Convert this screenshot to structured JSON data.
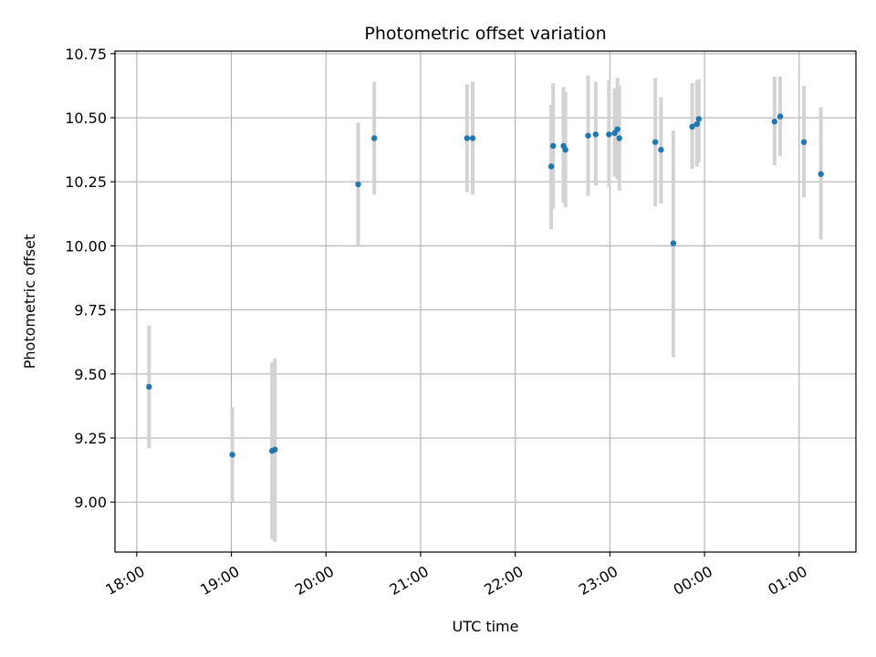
{
  "chart_data": {
    "type": "scatter",
    "title": "Photometric offset variation",
    "xlabel": "UTC time",
    "ylabel": "Photometric offset",
    "x_unit": "hours (UTC, continuing past midnight)",
    "xlim": [
      17.77,
      25.6
    ],
    "ylim": [
      8.805,
      10.76
    ],
    "grid": true,
    "x_ticks": [
      {
        "value": 18,
        "label": "18:00"
      },
      {
        "value": 19,
        "label": "19:00"
      },
      {
        "value": 20,
        "label": "20:00"
      },
      {
        "value": 21,
        "label": "21:00"
      },
      {
        "value": 22,
        "label": "22:00"
      },
      {
        "value": 23,
        "label": "23:00"
      },
      {
        "value": 24,
        "label": "00:00"
      },
      {
        "value": 25,
        "label": "01:00"
      }
    ],
    "y_ticks": [
      {
        "value": 9.0,
        "label": "9.00"
      },
      {
        "value": 9.25,
        "label": "9.25"
      },
      {
        "value": 9.5,
        "label": "9.50"
      },
      {
        "value": 9.75,
        "label": "9.75"
      },
      {
        "value": 10.0,
        "label": "10.00"
      },
      {
        "value": 10.25,
        "label": "10.25"
      },
      {
        "value": 10.5,
        "label": "10.50"
      },
      {
        "value": 10.75,
        "label": "10.75"
      }
    ],
    "colors": {
      "point": "#1f77b4",
      "errorbar": "#d3d3d3",
      "grid": "#b0b0b0"
    },
    "points": [
      {
        "x": 18.13,
        "y": 9.45,
        "ylow": 9.21,
        "yhigh": 9.69
      },
      {
        "x": 19.01,
        "y": 9.185,
        "ylow": 9.0,
        "yhigh": 9.37
      },
      {
        "x": 19.43,
        "y": 9.2,
        "ylow": 8.855,
        "yhigh": 9.545
      },
      {
        "x": 19.46,
        "y": 9.205,
        "ylow": 8.845,
        "yhigh": 9.56
      },
      {
        "x": 20.34,
        "y": 10.24,
        "ylow": 10.0,
        "yhigh": 10.48
      },
      {
        "x": 20.51,
        "y": 10.42,
        "ylow": 10.2,
        "yhigh": 10.64
      },
      {
        "x": 21.49,
        "y": 10.42,
        "ylow": 10.21,
        "yhigh": 10.63
      },
      {
        "x": 21.55,
        "y": 10.42,
        "ylow": 10.2,
        "yhigh": 10.64
      },
      {
        "x": 22.38,
        "y": 10.31,
        "ylow": 10.065,
        "yhigh": 10.55
      },
      {
        "x": 22.4,
        "y": 10.39,
        "ylow": 10.145,
        "yhigh": 10.635
      },
      {
        "x": 22.51,
        "y": 10.39,
        "ylow": 10.17,
        "yhigh": 10.62
      },
      {
        "x": 22.53,
        "y": 10.375,
        "ylow": 10.15,
        "yhigh": 10.6
      },
      {
        "x": 22.77,
        "y": 10.43,
        "ylow": 10.195,
        "yhigh": 10.665
      },
      {
        "x": 22.85,
        "y": 10.435,
        "ylow": 10.235,
        "yhigh": 10.64
      },
      {
        "x": 22.99,
        "y": 10.435,
        "ylow": 10.23,
        "yhigh": 10.645
      },
      {
        "x": 23.05,
        "y": 10.44,
        "ylow": 10.27,
        "yhigh": 10.615
      },
      {
        "x": 23.08,
        "y": 10.455,
        "ylow": 10.26,
        "yhigh": 10.655
      },
      {
        "x": 23.1,
        "y": 10.42,
        "ylow": 10.215,
        "yhigh": 10.625
      },
      {
        "x": 23.48,
        "y": 10.405,
        "ylow": 10.155,
        "yhigh": 10.655
      },
      {
        "x": 23.54,
        "y": 10.375,
        "ylow": 10.165,
        "yhigh": 10.58
      },
      {
        "x": 23.67,
        "y": 10.01,
        "ylow": 9.565,
        "yhigh": 10.45
      },
      {
        "x": 23.87,
        "y": 10.465,
        "ylow": 10.3,
        "yhigh": 10.635
      },
      {
        "x": 23.92,
        "y": 10.475,
        "ylow": 10.31,
        "yhigh": 10.645
      },
      {
        "x": 23.94,
        "y": 10.495,
        "ylow": 10.325,
        "yhigh": 10.65
      },
      {
        "x": 24.74,
        "y": 10.485,
        "ylow": 10.315,
        "yhigh": 10.66
      },
      {
        "x": 24.8,
        "y": 10.505,
        "ylow": 10.35,
        "yhigh": 10.66
      },
      {
        "x": 25.05,
        "y": 10.405,
        "ylow": 10.19,
        "yhigh": 10.625
      },
      {
        "x": 25.23,
        "y": 10.28,
        "ylow": 10.025,
        "yhigh": 10.54
      }
    ]
  }
}
